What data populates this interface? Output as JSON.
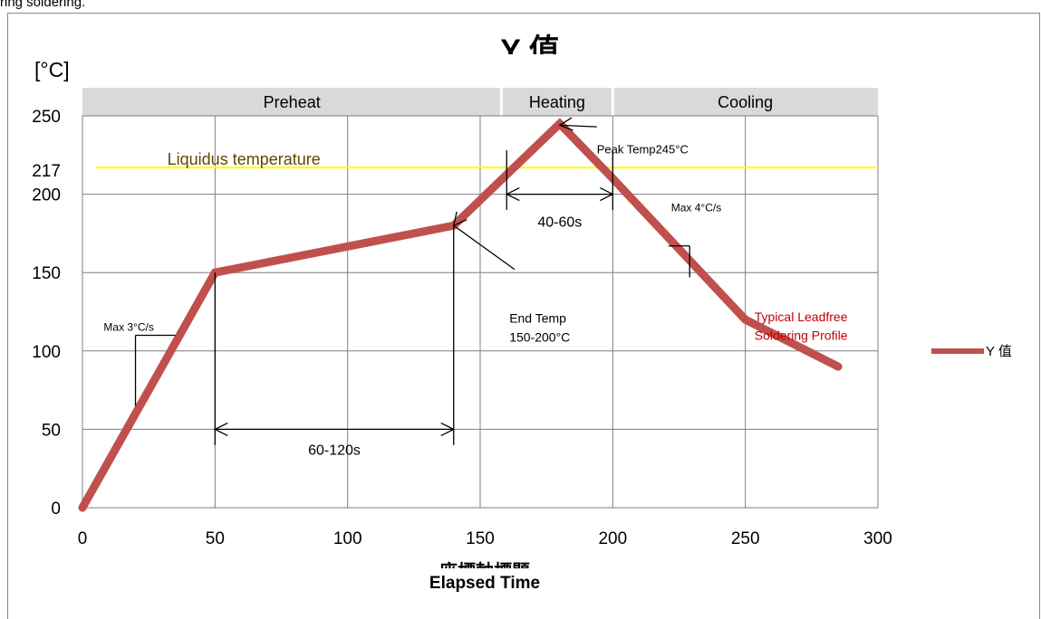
{
  "header_text": "ring soldering.",
  "chart_data": {
    "type": "line",
    "title": "Y 值",
    "xlabel": "座標軸標題",
    "xlabel2": "Elapsed Time",
    "ylabel": "[°C]",
    "xlim": [
      0,
      300
    ],
    "ylim": [
      0,
      250
    ],
    "xticks": [
      0,
      50,
      100,
      150,
      200,
      250,
      300
    ],
    "yticks": [
      0,
      50,
      100,
      150,
      200,
      250
    ],
    "extra_ytick": 217,
    "grid": true,
    "legend_position": "right",
    "series": [
      {
        "name": "Y 值",
        "color": "#c0504d",
        "x": [
          0,
          50,
          140,
          180,
          200,
          250,
          285
        ],
        "y": [
          0,
          150,
          180,
          245,
          210,
          120,
          90
        ]
      }
    ],
    "phases": [
      {
        "label": "Preheat",
        "x0": 0,
        "x1": 158
      },
      {
        "label": "Heating",
        "x0": 158,
        "x1": 200
      },
      {
        "label": "Cooling",
        "x0": 200,
        "x1": 300
      }
    ],
    "liquidus": {
      "label": "Liquidus temperature",
      "y": 217,
      "color": "#ffff00",
      "label_color": "#5c4a00"
    },
    "annotations": {
      "peak": "Peak Temp245°C",
      "window": "40-60s",
      "cool_rate": "Max 4°C/s",
      "end_temp_1": "End Temp",
      "end_temp_2": "150-200°C",
      "preheat_window": "60-120s",
      "heat_rate": "Max 3°C/s",
      "profile_1": "Typical Leadfree",
      "profile_2": "Soldering Profile"
    },
    "annotation_color": "#c00000",
    "phase_band_color": "#d9d9d9",
    "grid_color": "#7f7f7f"
  }
}
